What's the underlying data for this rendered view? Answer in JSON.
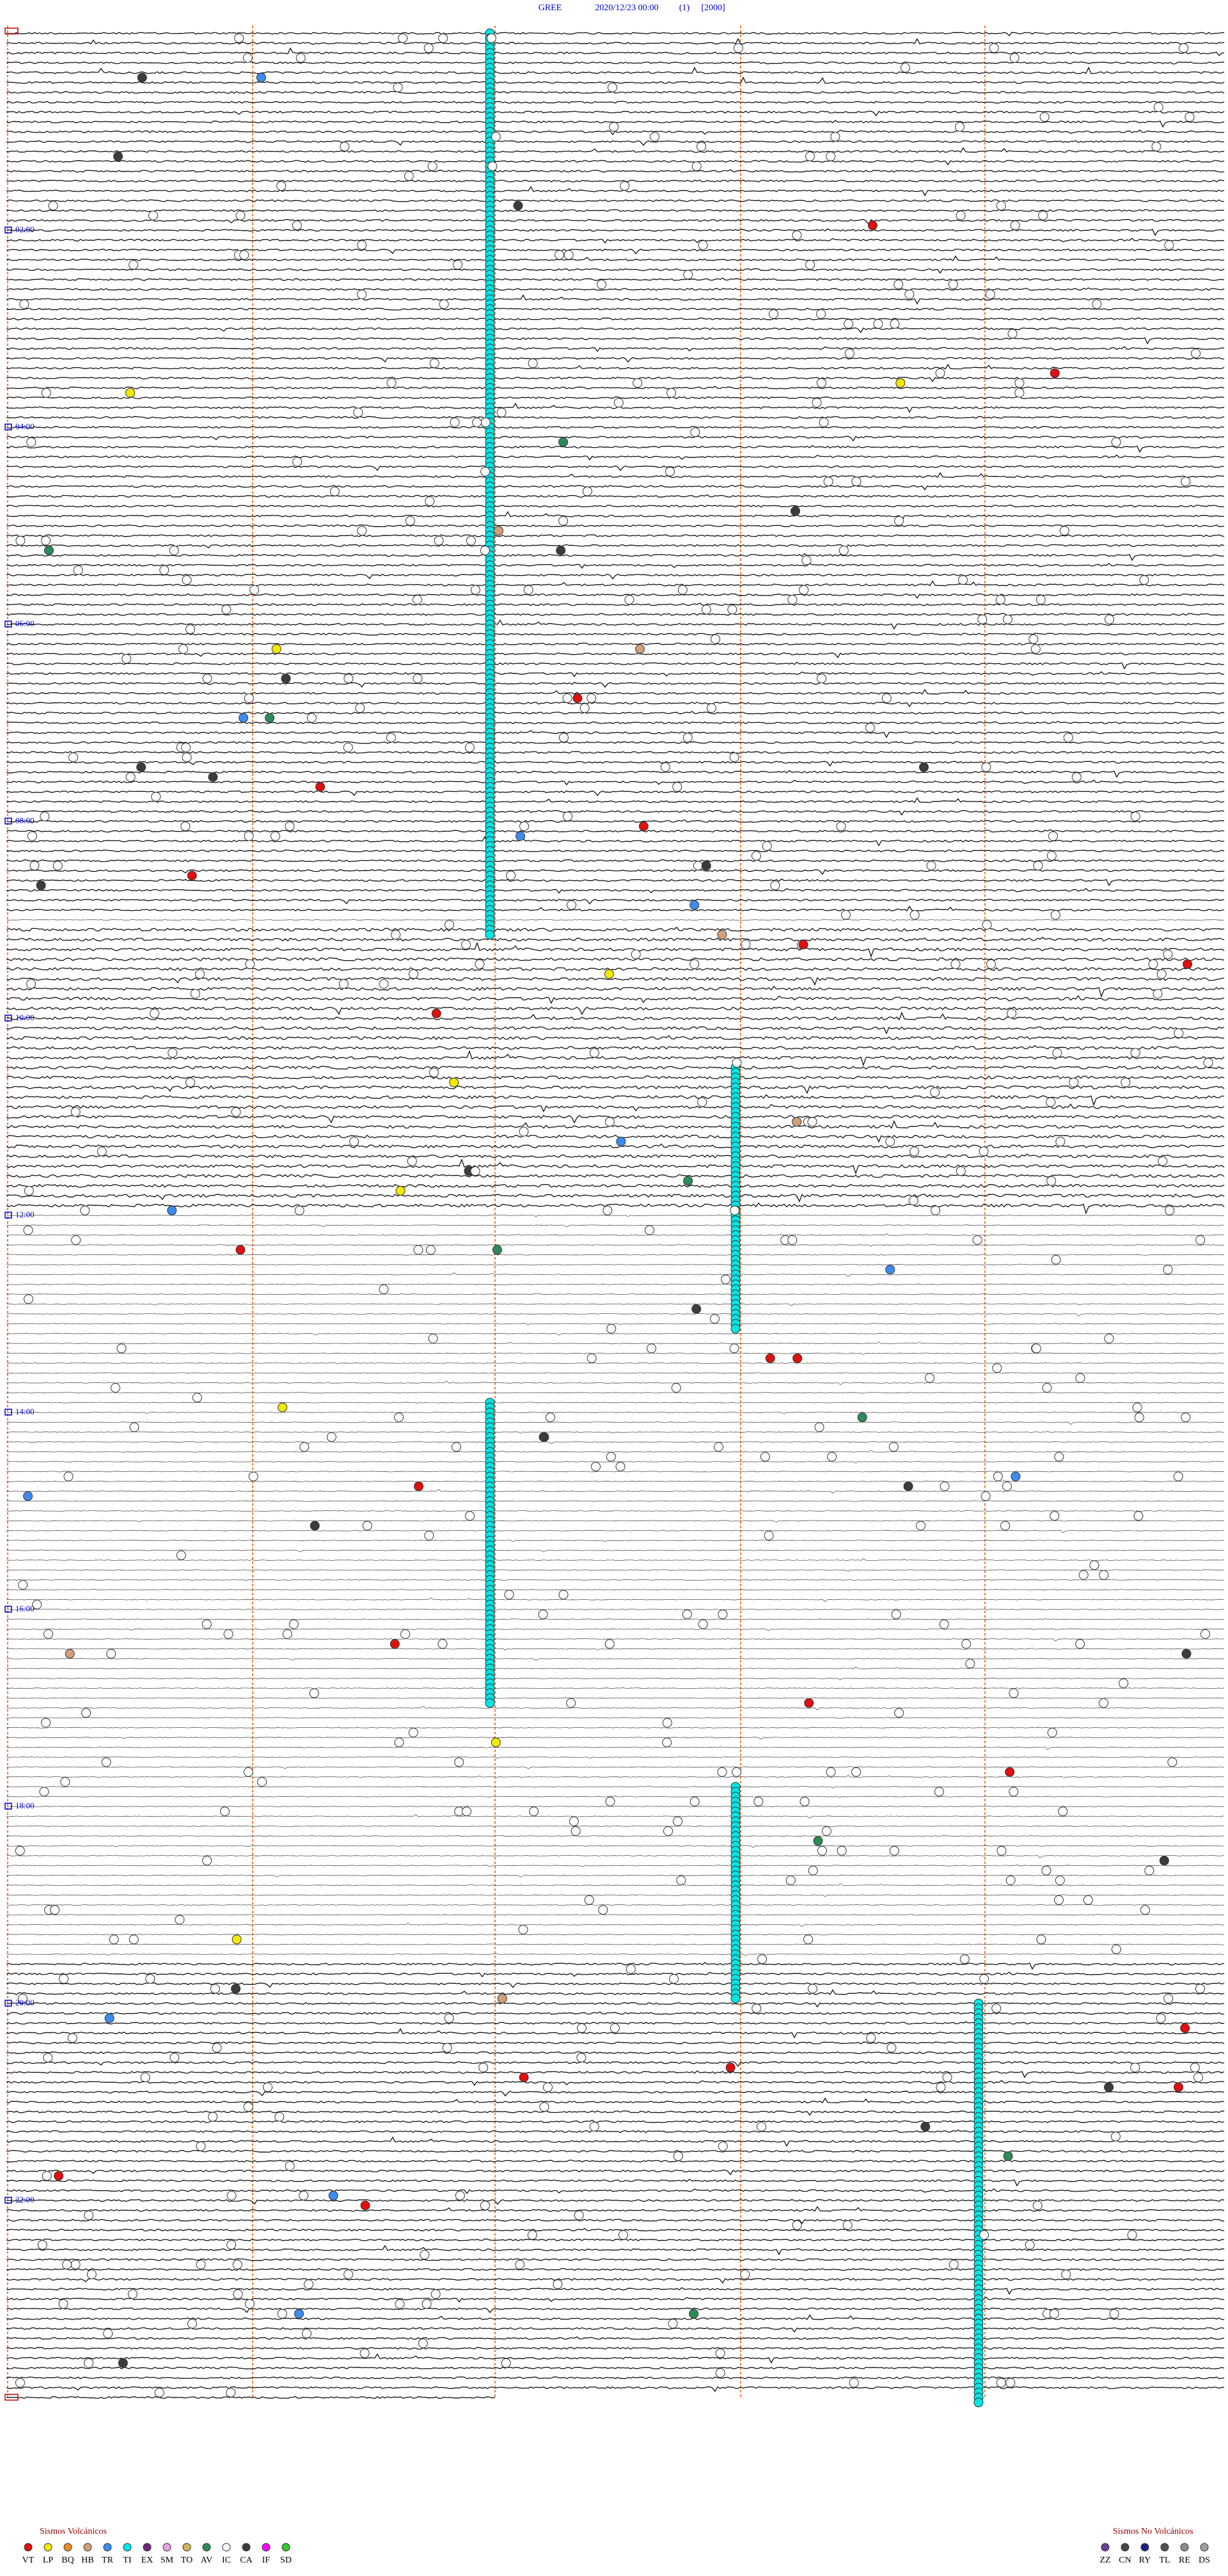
{
  "header": {
    "station": "GREE",
    "datetime": "2020/12/23 00:00",
    "channel": "(1)",
    "scale": "[2000]"
  },
  "hour_labels": [
    "02:00",
    "04:00",
    "06:00",
    "08:00",
    "10:00",
    "12:00",
    "14:00",
    "16:00",
    "18:00",
    "20:00",
    "22:00"
  ],
  "legend": {
    "volcanic": {
      "title": "Sismos Volcánicos",
      "items": [
        {
          "label": "VT",
          "color": "#e01010"
        },
        {
          "label": "LP",
          "color": "#f5e800"
        },
        {
          "label": "BQ",
          "color": "#f08c1e"
        },
        {
          "label": "HB",
          "color": "#d2a078"
        },
        {
          "label": "TR",
          "color": "#3c8cf0"
        },
        {
          "label": "TI",
          "color": "#00e6e6"
        },
        {
          "label": "EX",
          "color": "#6e2878"
        },
        {
          "label": "SM",
          "color": "#e6a0e6"
        },
        {
          "label": "TO",
          "color": "#d2b45a"
        },
        {
          "label": "AV",
          "color": "#2e8b57"
        },
        {
          "label": "IC",
          "color": "#ffffff"
        },
        {
          "label": "CA",
          "color": "#3c3c3c"
        },
        {
          "label": "IF",
          "color": "#ff00ff"
        },
        {
          "label": "SD",
          "color": "#32c832"
        }
      ]
    },
    "non_volcanic": {
      "title": "Sismos No Volcánicos",
      "items": [
        {
          "label": "ZZ",
          "color": "#6e3c96"
        },
        {
          "label": "CN",
          "color": "#464646"
        },
        {
          "label": "RY",
          "color": "#1e1e8c"
        },
        {
          "label": "TL",
          "color": "#505050"
        },
        {
          "label": "RE",
          "color": "#8c8c8c"
        },
        {
          "label": "DS",
          "color": "#a0a0a0"
        }
      ]
    }
  }
}
